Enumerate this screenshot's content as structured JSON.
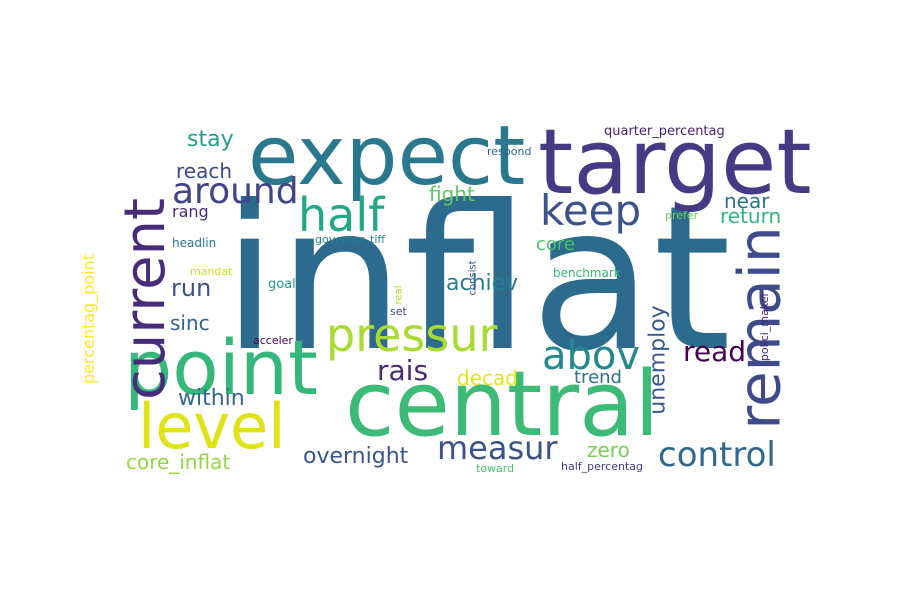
{
  "word_cloud": {
    "words": [
      {
        "text": "inflat",
        "color": "#2c6b8e"
      },
      {
        "text": "target",
        "color": "#443b84"
      },
      {
        "text": "expect",
        "color": "#2a788e"
      },
      {
        "text": "central",
        "color": "#3bbb75"
      },
      {
        "text": "point",
        "color": "#35b779"
      },
      {
        "text": "level",
        "color": "#dfe318"
      },
      {
        "text": "remain",
        "color": "#3e4a89"
      },
      {
        "text": "current",
        "color": "#472c7a"
      },
      {
        "text": "pressur",
        "color": "#a8db34"
      },
      {
        "text": "half",
        "color": "#22a884"
      },
      {
        "text": "keep",
        "color": "#3b528b"
      },
      {
        "text": "around",
        "color": "#414487"
      },
      {
        "text": "abov",
        "color": "#23898e"
      },
      {
        "text": "control",
        "color": "#31688e"
      },
      {
        "text": "measur",
        "color": "#3b528b"
      },
      {
        "text": "read",
        "color": "#440154"
      },
      {
        "text": "rais",
        "color": "#482878"
      },
      {
        "text": "overnight",
        "color": "#39568c"
      },
      {
        "text": "unemploy",
        "color": "#38598c"
      },
      {
        "text": "within",
        "color": "#31688e"
      },
      {
        "text": "core_inflat",
        "color": "#95d840"
      },
      {
        "text": "run",
        "color": "#3b528b"
      },
      {
        "text": "sinc",
        "color": "#33638d"
      },
      {
        "text": "stay",
        "color": "#1f9e89"
      },
      {
        "text": "reach",
        "color": "#3e4989"
      },
      {
        "text": "fight",
        "color": "#5ec962"
      },
      {
        "text": "near",
        "color": "#2d708e"
      },
      {
        "text": "return",
        "color": "#2fb47c"
      },
      {
        "text": "achiev",
        "color": "#277f8e"
      },
      {
        "text": "decad",
        "color": "#e5e419"
      },
      {
        "text": "trend",
        "color": "#2c728e"
      },
      {
        "text": "zero",
        "color": "#7ad151"
      },
      {
        "text": "core",
        "color": "#4ac16d"
      },
      {
        "text": "rang",
        "color": "#472d7b"
      },
      {
        "text": "percentag_point",
        "color": "#fde725"
      },
      {
        "text": "quarter_percentag",
        "color": "#481f70"
      },
      {
        "text": "respond",
        "color": "#31688e"
      },
      {
        "text": "headlin",
        "color": "#2a788e"
      },
      {
        "text": "governor_tiff",
        "color": "#26828e"
      },
      {
        "text": "prefer",
        "color": "#6ccd5a"
      },
      {
        "text": "consist",
        "color": "#3b528b"
      },
      {
        "text": "mandat",
        "color": "#d2e21b"
      },
      {
        "text": "goal",
        "color": "#1f9e89"
      },
      {
        "text": "real",
        "color": "#b5de2b"
      },
      {
        "text": "benchmark",
        "color": "#35b779"
      },
      {
        "text": "set",
        "color": "#3e4a89"
      },
      {
        "text": "polici_maker",
        "color": "#482576"
      },
      {
        "text": "acceler",
        "color": "#440154"
      },
      {
        "text": "toward",
        "color": "#4ac16d"
      },
      {
        "text": "half_percentag",
        "color": "#453781"
      }
    ]
  }
}
